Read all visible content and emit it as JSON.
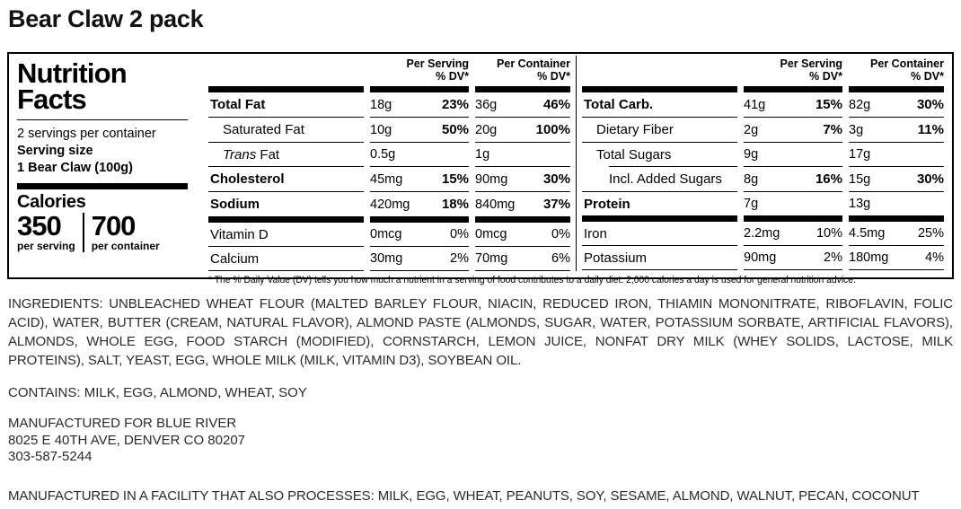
{
  "page_title": "Bear Claw 2 pack",
  "nutrition_facts": {
    "title_line1": "Nutrition",
    "title_line2": "Facts",
    "servings_per_container": "2 servings per container",
    "serving_size_label": "Serving size",
    "serving_size_value": "1 Bear Claw (100g)",
    "calories_label": "Calories",
    "calories_per_serving": "350",
    "calories_per_serving_label": "per serving",
    "calories_per_container": "700",
    "calories_per_container_label": "per container",
    "col_header": {
      "serving": "Per Serving",
      "container": "Per Container",
      "dv": "% DV*"
    },
    "tables": [
      {
        "rows": [
          {
            "name": "Total Fat",
            "b": true,
            "dvb": true,
            "sa": "18g",
            "sd": "23%",
            "ca": "36g",
            "cd": "46%"
          },
          {
            "name": "Saturated Fat",
            "i": 1,
            "dvb": true,
            "sa": "10g",
            "sd": "50%",
            "ca": "20g",
            "cd": "100%"
          },
          {
            "name": "Trans Fat",
            "i": 1,
            "it": true,
            "sa": "0.5g",
            "sd": "",
            "ca": "1g",
            "cd": ""
          },
          {
            "name": "Cholesterol",
            "b": true,
            "dvb": true,
            "sa": "45mg",
            "sd": "15%",
            "ca": "90mg",
            "cd": "30%"
          },
          {
            "name": "Sodium",
            "b": true,
            "dvb": true,
            "nl": true,
            "bar": true,
            "sa": "420mg",
            "sd": "18%",
            "ca": "840mg",
            "cd": "37%"
          },
          {
            "name": "Vitamin D",
            "sa": "0mcg",
            "sd": "0%",
            "ca": "0mcg",
            "cd": "0%"
          },
          {
            "name": "Calcium",
            "sa": "30mg",
            "sd": "2%",
            "ca": "70mg",
            "cd": "6%"
          }
        ]
      },
      {
        "rows": [
          {
            "name": "Total Carb.",
            "b": true,
            "dvb": true,
            "sa": "41g",
            "sd": "15%",
            "ca": "82g",
            "cd": "30%"
          },
          {
            "name": "Dietary Fiber",
            "i": 1,
            "dvb": true,
            "sa": "2g",
            "sd": "7%",
            "ca": "3g",
            "cd": "11%"
          },
          {
            "name": "Total Sugars",
            "i": 1,
            "inset": true,
            "sa": "9g",
            "sd": "",
            "ca": "17g",
            "cd": ""
          },
          {
            "name": "Incl. Added Sugars",
            "i": 2,
            "dvb": true,
            "sa": "8g",
            "sd": "16%",
            "ca": "15g",
            "cd": "30%"
          },
          {
            "name": "Protein",
            "b": true,
            "nl": true,
            "bar": true,
            "sa": "7g",
            "sd": "",
            "ca": "13g",
            "cd": ""
          },
          {
            "name": "Iron",
            "sa": "2.2mg",
            "sd": "10%",
            "ca": "4.5mg",
            "cd": "25%"
          },
          {
            "name": "Potassium",
            "sa": "90mg",
            "sd": "2%",
            "ca": "180mg",
            "cd": "4%"
          }
        ]
      }
    ],
    "footnote": "* The % Daily Value (DV) tells you how much a nutrient in a serving of food contributes to a daily diet. 2,000 calories a day is used for general nutrition advice."
  },
  "ingredients": "INGREDIENTS: UNBLEACHED WHEAT FLOUR (MALTED BARLEY FLOUR, NIACIN, REDUCED IRON, THIAMIN MONONITRATE, RIBOFLAVIN, FOLIC ACID), WATER, BUTTER (CREAM, NATURAL FLAVOR), ALMOND PASTE (ALMONDS, SUGAR, WATER, POTASSIUM SORBATE, ARTIFICIAL FLAVORS), ALMONDS, WHOLE EGG, FOOD STARCH (MODIFIED), CORNSTARCH, LEMON JUICE, NONFAT DRY MILK (WHEY SOLIDS, LACTOSE, MILK PROTEINS), SALT, YEAST, EGG, WHOLE MILK (MILK, VITAMIN D3), SOYBEAN OIL.",
  "contains": "CONTAINS: MILK, EGG, ALMOND, WHEAT, SOY",
  "manufacturer": [
    "MANUFACTURED FOR BLUE RIVER",
    "8025 E 40TH AVE, DENVER CO 80207",
    "303-587-5244"
  ],
  "facility": "MANUFACTURED IN A FACILITY THAT ALSO PROCESSES: MILK, EGG, WHEAT, PEANUTS, SOY, SESAME, ALMOND, WALNUT, PECAN, COCONUT"
}
